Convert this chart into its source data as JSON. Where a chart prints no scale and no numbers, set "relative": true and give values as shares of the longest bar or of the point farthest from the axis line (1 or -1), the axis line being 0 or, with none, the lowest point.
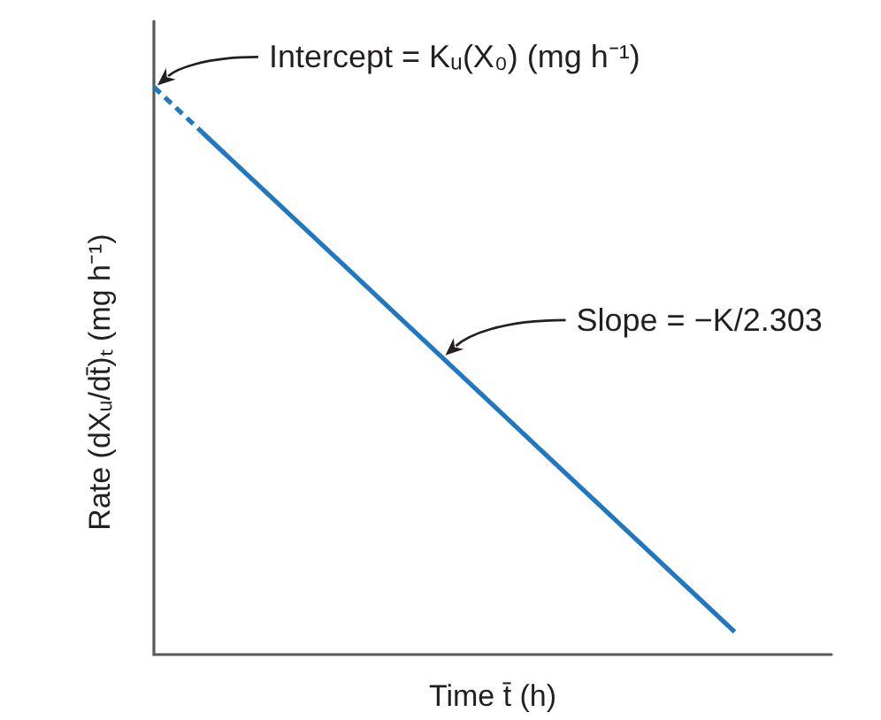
{
  "chart_data": {
    "type": "line",
    "relative": true,
    "xlabel": "Time t̄ (h)",
    "ylabel": "Rate (dXᵤ/dt̄)ₜ (mg h⁻¹)",
    "categories": [
      null,
      null,
      null,
      null,
      null,
      null,
      null,
      null,
      null,
      null,
      null,
      null,
      null,
      null,
      null
    ],
    "series": [
      {
        "color": "#1f78c1",
        "line_style": "dashed",
        "values": [
          1,
          0.92,
          null,
          null,
          null,
          null,
          null,
          null,
          null,
          null,
          null,
          null,
          null,
          null,
          null
        ]
      },
      {
        "color": "#1f78c1",
        "line_style": "solid",
        "values": [
          null,
          0.92,
          0.84,
          0.76,
          0.68,
          0.6,
          0.52,
          0.44,
          0.36,
          0.28,
          0.2,
          0.12,
          0.04,
          null,
          null
        ]
      }
    ],
    "marker": "none",
    "grid": false,
    "annotations": [
      "Intercept = Kᵤ(X₀) (mg h⁻¹)",
      "Slope = −K/2.303"
    ]
  }
}
